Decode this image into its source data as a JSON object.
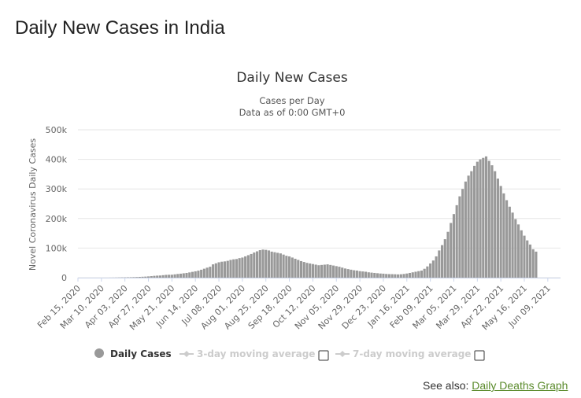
{
  "page": {
    "title": "Daily New Cases in India",
    "see_also_prefix": "See also:",
    "see_also_link": "Daily Deaths Graph"
  },
  "legend": {
    "daily": "Daily Cases",
    "ma3": "3-day moving average",
    "ma7": "7-day moving average"
  },
  "colors": {
    "bar": "#999999",
    "grid": "#e6e6e6",
    "legend_inactive": "#cccccc",
    "link": "#5a8a2b"
  },
  "chart_data": {
    "type": "bar",
    "title": "Daily New Cases",
    "subtitle_line1": "Cases per Day",
    "subtitle_line2": "Data as of 0:00 GMT+0",
    "xlabel": "",
    "ylabel": "Novel Coronavirus Daily Cases",
    "ylim": [
      0,
      500000
    ],
    "y_ticks": [
      {
        "value": 0,
        "label": "0"
      },
      {
        "value": 100000,
        "label": "100k"
      },
      {
        "value": 200000,
        "label": "200k"
      },
      {
        "value": 300000,
        "label": "300k"
      },
      {
        "value": 400000,
        "label": "400k"
      },
      {
        "value": 500000,
        "label": "500k"
      }
    ],
    "x_start_date": "2020-02-15",
    "x_end_date": "2021-06-22",
    "x_ticks": [
      {
        "date": "2020-02-15",
        "label": "Feb 15, 2020"
      },
      {
        "date": "2020-03-10",
        "label": "Mar 10, 2020"
      },
      {
        "date": "2020-04-03",
        "label": "Apr 03, 2020"
      },
      {
        "date": "2020-04-27",
        "label": "Apr 27, 2020"
      },
      {
        "date": "2020-05-21",
        "label": "May 21, 2020"
      },
      {
        "date": "2020-06-14",
        "label": "Jun 14, 2020"
      },
      {
        "date": "2020-07-08",
        "label": "Jul 08, 2020"
      },
      {
        "date": "2020-08-01",
        "label": "Aug 01, 2020"
      },
      {
        "date": "2020-08-25",
        "label": "Aug 25, 2020"
      },
      {
        "date": "2020-09-18",
        "label": "Sep 18, 2020"
      },
      {
        "date": "2020-10-12",
        "label": "Oct 12, 2020"
      },
      {
        "date": "2020-11-05",
        "label": "Nov 05, 2020"
      },
      {
        "date": "2020-11-29",
        "label": "Nov 29, 2020"
      },
      {
        "date": "2020-12-23",
        "label": "Dec 23, 2020"
      },
      {
        "date": "2021-01-16",
        "label": "Jan 16, 2021"
      },
      {
        "date": "2021-02-09",
        "label": "Feb 09, 2021"
      },
      {
        "date": "2021-03-05",
        "label": "Mar 05, 2021"
      },
      {
        "date": "2021-03-29",
        "label": "Mar 29, 2021"
      },
      {
        "date": "2021-04-22",
        "label": "Apr 22, 2021"
      },
      {
        "date": "2021-05-16",
        "label": "May 16, 2021"
      },
      {
        "date": "2021-06-09",
        "label": "Jun 09, 2021"
      }
    ],
    "series": [
      {
        "name": "Daily Cases",
        "interval_days": 3,
        "note": "one value per 3 days starting 2020-02-15, estimated from the plot",
        "values": [
          0,
          0,
          0,
          0,
          0,
          0,
          0,
          0,
          0,
          0,
          0,
          100,
          200,
          400,
          700,
          900,
          1000,
          1300,
          1500,
          1800,
          2100,
          2600,
          3100,
          3600,
          4300,
          5200,
          6200,
          6900,
          7300,
          8400,
          9500,
          9800,
          9900,
          11200,
          12500,
          13500,
          14800,
          16000,
          17700,
          19600,
          21500,
          23700,
          26800,
          30200,
          33800,
          37000,
          45000,
          48500,
          52000,
          54000,
          55000,
          57000,
          60000,
          62000,
          63000,
          66000,
          68000,
          72000,
          76000,
          80000,
          85000,
          89000,
          93000,
          95000,
          94000,
          92000,
          88000,
          86000,
          84000,
          82000,
          78000,
          74000,
          72000,
          68000,
          64000,
          60000,
          56000,
          53000,
          50000,
          48000,
          46000,
          44000,
          42000,
          43000,
          44000,
          45000,
          43000,
          41000,
          39000,
          37000,
          34000,
          31000,
          29000,
          27000,
          25000,
          24000,
          22000,
          21000,
          20000,
          18000,
          17000,
          16000,
          15000,
          14000,
          13500,
          12500,
          12000,
          11800,
          11500,
          11000,
          11500,
          12500,
          14000,
          16000,
          18000,
          20000,
          22000,
          24000,
          30000,
          38000,
          48000,
          58000,
          72000,
          92000,
          110000,
          130000,
          155000,
          185000,
          215000,
          245000,
          275000,
          300000,
          325000,
          345000,
          360000,
          378000,
          392000,
          400000,
          405000,
          410000,
          395000,
          380000,
          360000,
          335000,
          310000,
          285000,
          262000,
          240000,
          220000,
          198000,
          180000,
          160000,
          142000,
          126000,
          112000,
          96000,
          88000
        ]
      }
    ],
    "legend_entries": [
      "Daily Cases",
      "3-day moving average",
      "7-day moving average"
    ]
  }
}
